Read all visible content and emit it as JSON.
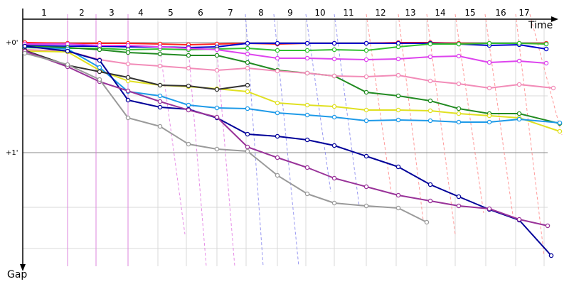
{
  "chart_data": {
    "type": "line",
    "x_axis_label": "Time",
    "y_axis_label": "Gap",
    "lap_labels": [
      "1",
      "2",
      "3",
      "4",
      "5",
      "6",
      "7",
      "8",
      "9",
      "10",
      "11",
      "12",
      "13",
      "14",
      "15",
      "16",
      "17"
    ],
    "gap_ticks": [
      "+0'",
      "+1'"
    ],
    "grid": true,
    "series": [
      {
        "color": "#ff2020",
        "points": [
          [
            35,
            60
          ],
          [
            95,
            61
          ],
          [
            140,
            61
          ],
          [
            180,
            61
          ],
          [
            225,
            62
          ],
          [
            265,
            63
          ],
          [
            305,
            62
          ],
          [
            348,
            61
          ],
          [
            390,
            62
          ],
          [
            432,
            61
          ],
          [
            470,
            61
          ],
          [
            515,
            61
          ],
          [
            560,
            60
          ],
          [
            605,
            60
          ],
          [
            645,
            61
          ],
          [
            688,
            61
          ],
          [
            730,
            61
          ],
          [
            768,
            61
          ]
        ]
      },
      {
        "color": "#0000cc",
        "points": [
          [
            35,
            64
          ],
          [
            95,
            65
          ],
          [
            140,
            65
          ],
          [
            180,
            66
          ],
          [
            225,
            66
          ],
          [
            265,
            67
          ],
          [
            305,
            66
          ],
          [
            348,
            61
          ],
          [
            390,
            61
          ],
          [
            432,
            61
          ],
          [
            470,
            61
          ],
          [
            515,
            61
          ],
          [
            560,
            61
          ],
          [
            605,
            61
          ],
          [
            645,
            62
          ],
          [
            688,
            64
          ],
          [
            730,
            63
          ],
          [
            768,
            69
          ]
        ]
      },
      {
        "color": "#30c030",
        "points": [
          [
            35,
            67
          ],
          [
            95,
            68
          ],
          [
            140,
            68
          ],
          [
            180,
            70
          ],
          [
            225,
            69
          ],
          [
            265,
            70
          ],
          [
            305,
            69
          ],
          [
            348,
            68
          ],
          [
            390,
            71
          ],
          [
            432,
            71
          ],
          [
            470,
            70
          ],
          [
            515,
            71
          ],
          [
            560,
            66
          ],
          [
            605,
            62
          ],
          [
            645,
            62
          ],
          [
            688,
            61
          ],
          [
            730,
            61
          ],
          [
            768,
            62
          ]
        ]
      },
      {
        "color": "#dd44ee",
        "points": [
          [
            35,
            62
          ],
          [
            95,
            62
          ],
          [
            140,
            64
          ],
          [
            180,
            64
          ],
          [
            225,
            66
          ],
          [
            265,
            68
          ],
          [
            305,
            70
          ],
          [
            348,
            76
          ],
          [
            390,
            82
          ],
          [
            432,
            82
          ],
          [
            470,
            83
          ],
          [
            515,
            84
          ],
          [
            560,
            83
          ],
          [
            605,
            80
          ],
          [
            645,
            79
          ],
          [
            688,
            88
          ],
          [
            730,
            86
          ],
          [
            768,
            89
          ]
        ]
      },
      {
        "color": "#228b22",
        "points": [
          [
            35,
            65
          ],
          [
            95,
            67
          ],
          [
            140,
            70
          ],
          [
            180,
            74
          ],
          [
            225,
            76
          ],
          [
            265,
            78
          ],
          [
            305,
            78
          ],
          [
            348,
            88
          ],
          [
            390,
            99
          ],
          [
            432,
            103
          ],
          [
            470,
            107
          ],
          [
            515,
            130
          ],
          [
            560,
            135
          ],
          [
            605,
            142
          ],
          [
            645,
            153
          ],
          [
            688,
            160
          ],
          [
            730,
            160
          ],
          [
            787,
            174
          ]
        ]
      },
      {
        "color": "#f28cb8",
        "points": [
          [
            35,
            70
          ],
          [
            95,
            72
          ],
          [
            140,
            84
          ],
          [
            180,
            90
          ],
          [
            225,
            93
          ],
          [
            265,
            96
          ],
          [
            305,
            99
          ],
          [
            348,
            96
          ],
          [
            390,
            100
          ],
          [
            432,
            103
          ],
          [
            470,
            107
          ],
          [
            515,
            108
          ],
          [
            560,
            106
          ],
          [
            605,
            114
          ],
          [
            645,
            118
          ],
          [
            688,
            124
          ],
          [
            730,
            119
          ],
          [
            778,
            124
          ]
        ]
      },
      {
        "color": "#e0e020",
        "points": [
          [
            35,
            72
          ],
          [
            95,
            73
          ],
          [
            140,
            99
          ],
          [
            180,
            114
          ],
          [
            225,
            120
          ],
          [
            265,
            122
          ],
          [
            305,
            125
          ],
          [
            348,
            129
          ],
          [
            390,
            145
          ],
          [
            432,
            148
          ],
          [
            470,
            150
          ],
          [
            515,
            155
          ],
          [
            560,
            155
          ],
          [
            605,
            156
          ],
          [
            645,
            160
          ],
          [
            688,
            163
          ],
          [
            730,
            166
          ],
          [
            787,
            185
          ]
        ]
      },
      {
        "color": "#1e9ae8",
        "points": [
          [
            35,
            66
          ],
          [
            95,
            69
          ],
          [
            140,
            95
          ],
          [
            180,
            129
          ],
          [
            225,
            135
          ],
          [
            265,
            148
          ],
          [
            305,
            152
          ],
          [
            348,
            153
          ],
          [
            390,
            159
          ],
          [
            432,
            162
          ],
          [
            470,
            165
          ],
          [
            515,
            170
          ],
          [
            560,
            169
          ],
          [
            605,
            170
          ],
          [
            645,
            172
          ],
          [
            688,
            172
          ],
          [
            730,
            168
          ],
          [
            787,
            173
          ]
        ]
      },
      {
        "color": "#333333",
        "points": [
          [
            35,
            71
          ],
          [
            95,
            92
          ],
          [
            140,
            101
          ],
          [
            180,
            109
          ],
          [
            225,
            120
          ],
          [
            265,
            121
          ],
          [
            305,
            126
          ],
          [
            348,
            120
          ]
        ]
      },
      {
        "color": "#000099",
        "points": [
          [
            35,
            65
          ],
          [
            95,
            72
          ],
          [
            140,
            85
          ],
          [
            180,
            141
          ],
          [
            225,
            151
          ],
          [
            265,
            154
          ],
          [
            305,
            166
          ],
          [
            348,
            189
          ],
          [
            390,
            192
          ],
          [
            432,
            197
          ],
          [
            470,
            205
          ],
          [
            515,
            220
          ],
          [
            560,
            235
          ],
          [
            605,
            260
          ],
          [
            645,
            277
          ],
          [
            688,
            295
          ],
          [
            730,
            310
          ],
          [
            775,
            360
          ]
        ]
      },
      {
        "color": "#993399",
        "points": [
          [
            35,
            72
          ],
          [
            95,
            94
          ],
          [
            140,
            115
          ],
          [
            180,
            128
          ],
          [
            225,
            143
          ],
          [
            265,
            155
          ],
          [
            305,
            165
          ],
          [
            348,
            207
          ],
          [
            390,
            222
          ],
          [
            432,
            236
          ],
          [
            470,
            251
          ],
          [
            515,
            263
          ],
          [
            560,
            275
          ],
          [
            605,
            283
          ],
          [
            645,
            290
          ],
          [
            688,
            294
          ],
          [
            730,
            309
          ],
          [
            770,
            318
          ]
        ]
      },
      {
        "color": "#9a9a9a",
        "points": [
          [
            35,
            75
          ],
          [
            95,
            91
          ],
          [
            140,
            112
          ],
          [
            180,
            166
          ],
          [
            225,
            178
          ],
          [
            265,
            203
          ],
          [
            305,
            210
          ],
          [
            348,
            213
          ],
          [
            390,
            247
          ],
          [
            432,
            273
          ],
          [
            470,
            286
          ],
          [
            515,
            290
          ],
          [
            560,
            293
          ],
          [
            600,
            313
          ]
        ]
      }
    ],
    "pit_lines": [
      {
        "color": "#e070e0",
        "style": "solid",
        "coords": [
          [
            95,
            20
          ],
          [
            95,
            375
          ]
        ]
      },
      {
        "color": "#e070e0",
        "style": "solid",
        "coords": [
          [
            135,
            20
          ],
          [
            135,
            375
          ]
        ]
      },
      {
        "color": "#e070e0",
        "style": "solid",
        "coords": [
          [
            180,
            20
          ],
          [
            180,
            375
          ]
        ]
      },
      {
        "color": "#e070e0",
        "style": "dashed",
        "coords": [
          [
            225,
            70
          ],
          [
            260,
            330
          ]
        ]
      },
      {
        "color": "#e070e0",
        "style": "dashed",
        "coords": [
          [
            265,
            70
          ],
          [
            290,
            375
          ]
        ]
      },
      {
        "color": "#e070e0",
        "style": "dashed",
        "coords": [
          [
            305,
            70
          ],
          [
            330,
            375
          ]
        ]
      },
      {
        "color": "#8080ee",
        "style": "dashed",
        "coords": [
          [
            345,
            20
          ],
          [
            370,
            375
          ]
        ]
      },
      {
        "color": "#8080ee",
        "style": "dashed",
        "coords": [
          [
            385,
            20
          ],
          [
            420,
            375
          ]
        ]
      },
      {
        "color": "#8080ee",
        "style": "dashed",
        "coords": [
          [
            430,
            20
          ],
          [
            465,
            270
          ]
        ]
      },
      {
        "color": "#8080ee",
        "style": "dashed",
        "coords": [
          [
            470,
            20
          ],
          [
            505,
            290
          ]
        ]
      },
      {
        "color": "#ff8080",
        "style": "dashed",
        "coords": [
          [
            515,
            20
          ],
          [
            550,
            270
          ]
        ]
      },
      {
        "color": "#ff8080",
        "style": "dashed",
        "coords": [
          [
            560,
            20
          ],
          [
            595,
            310
          ]
        ]
      },
      {
        "color": "#ff8080",
        "style": "dashed",
        "coords": [
          [
            600,
            20
          ],
          [
            640,
            330
          ]
        ]
      },
      {
        "color": "#ff8080",
        "style": "dashed",
        "coords": [
          [
            640,
            20
          ],
          [
            680,
            300
          ]
        ]
      },
      {
        "color": "#ff8080",
        "style": "dashed",
        "coords": [
          [
            682,
            20
          ],
          [
            722,
            310
          ]
        ]
      },
      {
        "color": "#ff8080",
        "style": "dashed",
        "coords": [
          [
            725,
            20
          ],
          [
            765,
            360
          ]
        ]
      },
      {
        "color": "#ff8080",
        "style": "dashed",
        "coords": [
          [
            745,
            20
          ],
          [
            790,
            190
          ]
        ]
      }
    ]
  }
}
